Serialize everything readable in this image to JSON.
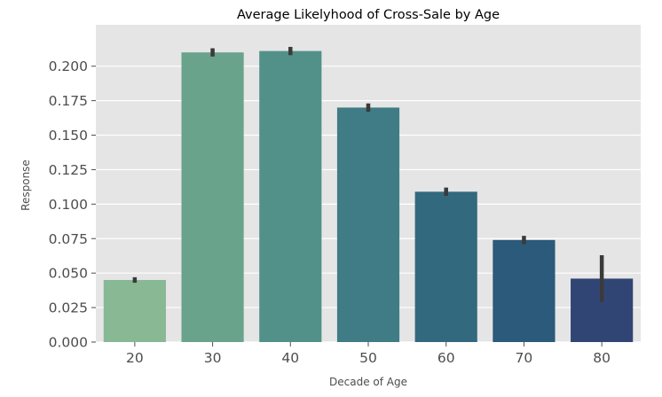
{
  "chart_data": {
    "type": "bar",
    "title": "Average Likelyhood of Cross-Sale by Age",
    "xlabel": "Decade of Age",
    "ylabel": "Response",
    "categories": [
      "20",
      "30",
      "40",
      "50",
      "60",
      "70",
      "80"
    ],
    "values": [
      0.045,
      0.21,
      0.211,
      0.17,
      0.109,
      0.074,
      0.046
    ],
    "error_low": [
      0.043,
      0.207,
      0.208,
      0.167,
      0.106,
      0.071,
      0.029
    ],
    "error_high": [
      0.047,
      0.213,
      0.214,
      0.173,
      0.112,
      0.077,
      0.063
    ],
    "ylim": [
      0,
      0.23
    ],
    "yticks": [
      "0.000",
      "0.025",
      "0.050",
      "0.075",
      "0.100",
      "0.125",
      "0.150",
      "0.175",
      "0.200"
    ],
    "grid": true,
    "colors": [
      "#88b894",
      "#6aa38c",
      "#52918a",
      "#3f7c86",
      "#33697f",
      "#2b5a7a",
      "#314575"
    ],
    "background": "#e5e5e5",
    "error_color": "#3a3a3a"
  }
}
